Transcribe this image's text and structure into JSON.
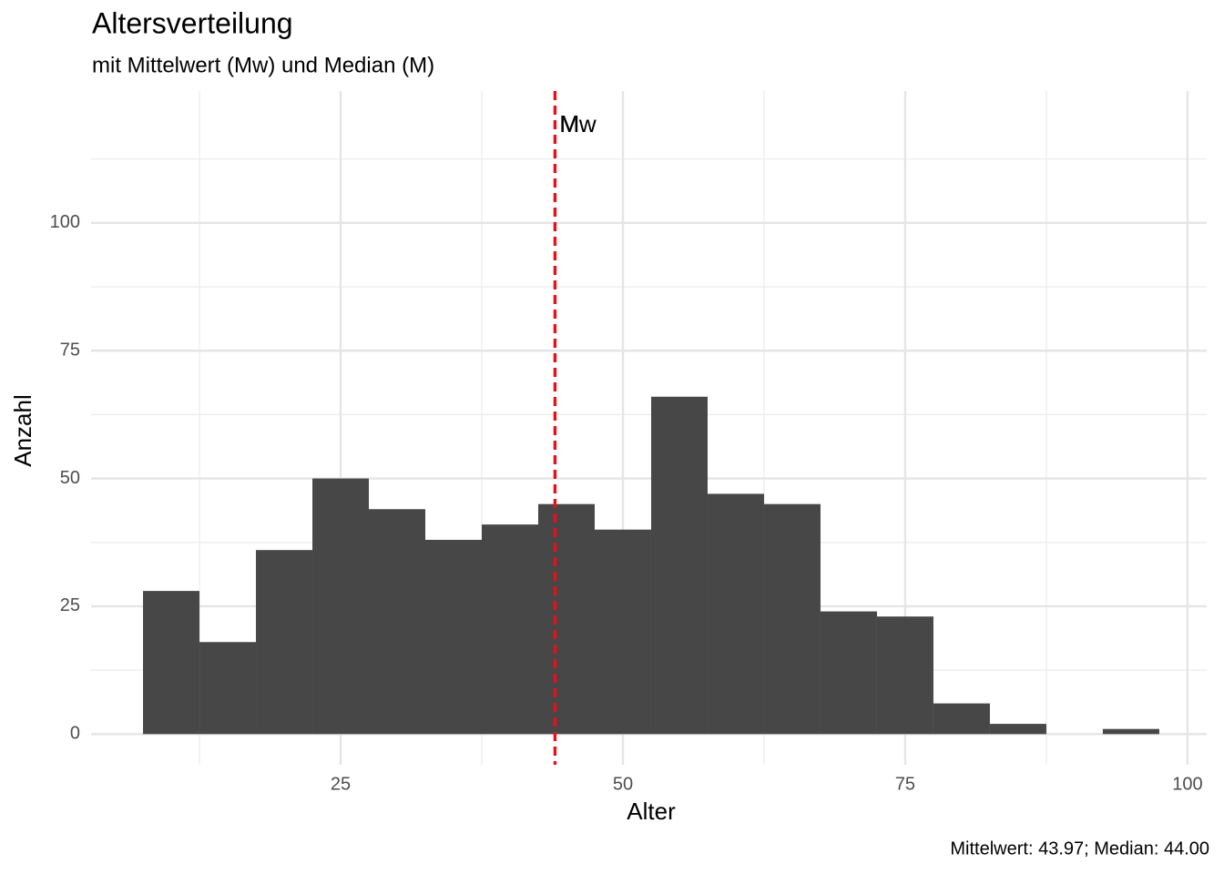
{
  "chart_data": {
    "type": "histogram",
    "title": "Altersverteilung",
    "subtitle": "mit Mittelwert (Mw) und Median (M)",
    "x_label": "Alter",
    "y_label": "Anzahl",
    "caption": "Mittelwert: 43.97; Median: 44.00",
    "bins": [
      7.5,
      12.5,
      17.5,
      22.5,
      27.5,
      32.5,
      37.5,
      42.5,
      47.5,
      52.5,
      57.5,
      62.5,
      67.5,
      72.5,
      77.5,
      82.5,
      87.5,
      92.5,
      97.5
    ],
    "values": [
      28,
      18,
      36,
      50,
      44,
      38,
      41,
      45,
      40,
      66,
      47,
      45,
      24,
      23,
      6,
      2,
      0,
      1
    ],
    "color": "#474747",
    "xlim": [
      2.9,
      101.7
    ],
    "ylim": [
      -6,
      125.8
    ],
    "xticks": [
      25,
      50,
      75,
      100
    ],
    "yticks": [
      0,
      25,
      50,
      75,
      100
    ],
    "grid": true,
    "minor_grid": true,
    "reference_lines": [
      {
        "label": "Mw",
        "value": 43.97,
        "color": "#e8101a"
      },
      {
        "label": "M",
        "value": 44,
        "color": "#e8101a"
      }
    ]
  }
}
